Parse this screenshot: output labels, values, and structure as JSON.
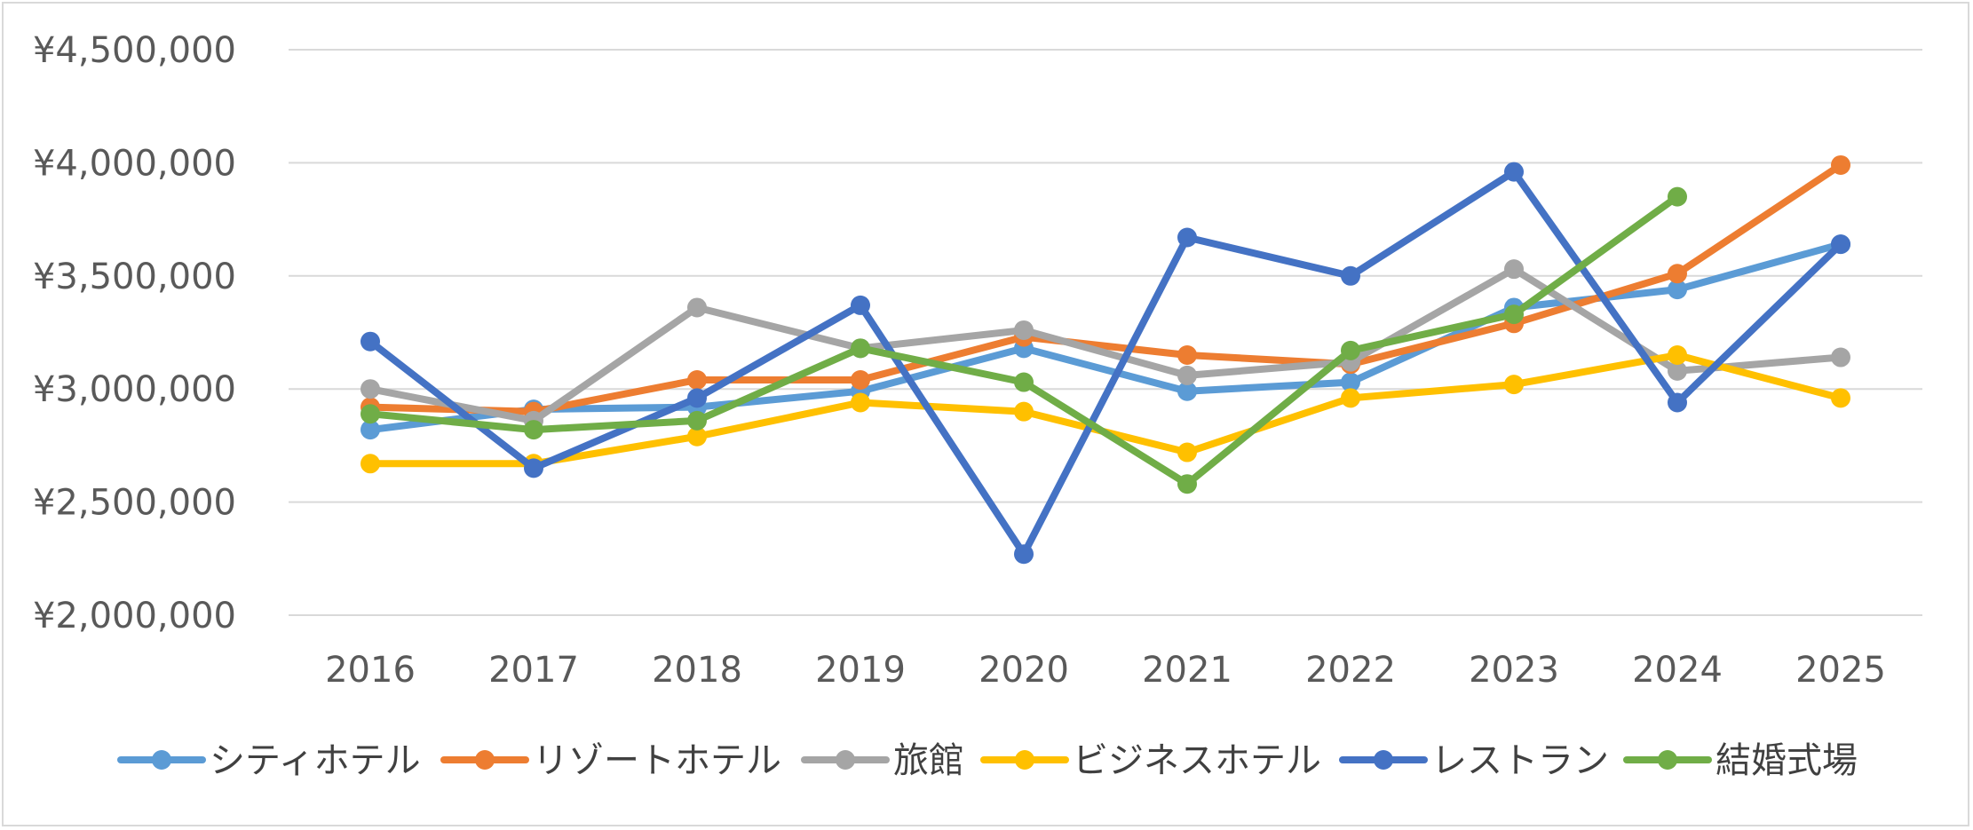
{
  "chart_data": {
    "type": "line",
    "title": "",
    "xlabel": "",
    "ylabel": "",
    "categories": [
      "2016",
      "2017",
      "2018",
      "2019",
      "2020",
      "2021",
      "2022",
      "2023",
      "2024",
      "2025"
    ],
    "ylim": [
      2000000,
      4500000
    ],
    "y_ticks": [
      2000000,
      2500000,
      3000000,
      3500000,
      4000000,
      4500000
    ],
    "y_tick_labels": [
      "¥2,000,000",
      "¥2,500,000",
      "¥3,000,000",
      "¥3,500,000",
      "¥4,000,000",
      "¥4,500,000"
    ],
    "grid": "horizontal",
    "legend_position": "bottom",
    "series": [
      {
        "name": "シティホテル",
        "color": "#5B9BD5",
        "values": [
          2820000,
          2910000,
          2920000,
          2990000,
          3180000,
          2990000,
          3030000,
          3360000,
          3440000,
          3640000
        ]
      },
      {
        "name": "リゾートホテル",
        "color": "#ED7D31",
        "values": [
          2920000,
          2900000,
          3040000,
          3040000,
          3230000,
          3150000,
          3110000,
          3290000,
          3510000,
          3990000
        ]
      },
      {
        "name": "旅館",
        "color": "#A5A5A5",
        "values": [
          3000000,
          2860000,
          3360000,
          3180000,
          3260000,
          3060000,
          3120000,
          3530000,
          3080000,
          3140000
        ]
      },
      {
        "name": "ビジネスホテル",
        "color": "#FFC000",
        "values": [
          2670000,
          2670000,
          2790000,
          2940000,
          2900000,
          2720000,
          2960000,
          3020000,
          3150000,
          2960000
        ]
      },
      {
        "name": "レストラン",
        "color": "#4472C4",
        "values": [
          3210000,
          2650000,
          2960000,
          3370000,
          2270000,
          3670000,
          3500000,
          3960000,
          2940000,
          3640000
        ]
      },
      {
        "name": "結婚式場",
        "color": "#70AD47",
        "values": [
          2890000,
          2820000,
          2860000,
          3180000,
          3030000,
          2580000,
          3170000,
          3330000,
          3850000,
          null
        ]
      }
    ]
  }
}
